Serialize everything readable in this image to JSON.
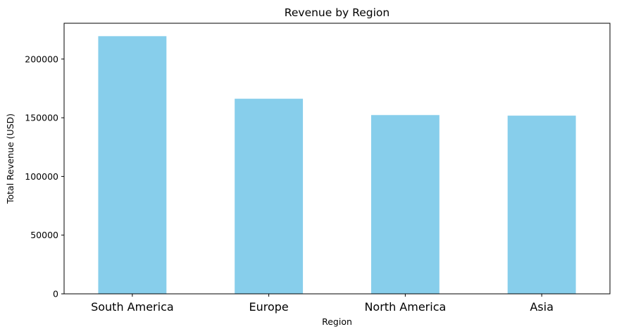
{
  "chart_data": {
    "type": "bar",
    "title": "Revenue by Region",
    "xlabel": "Region",
    "ylabel": "Total Revenue (USD)",
    "categories": [
      "South America",
      "Europe",
      "North America",
      "Asia"
    ],
    "values": [
      219500,
      166200,
      152300,
      151800
    ],
    "ylim": [
      0,
      230500
    ],
    "yticks": [
      0,
      50000,
      100000,
      150000,
      200000
    ],
    "ytick_labels": [
      "0",
      "50000",
      "100000",
      "150000",
      "200000"
    ],
    "bar_color": "#87CEEB",
    "grid": false,
    "legend": "none"
  }
}
